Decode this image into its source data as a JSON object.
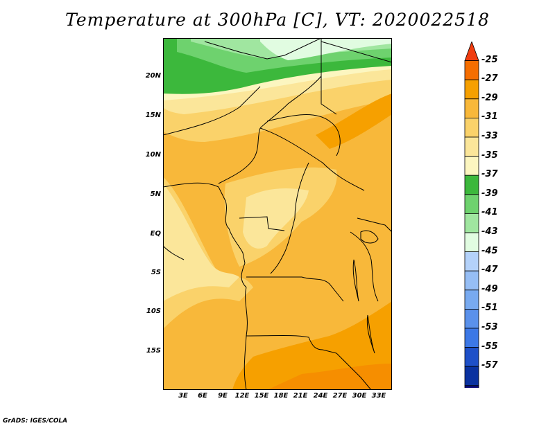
{
  "title": "Temperature at 300hPa [C], VT: 2020022518",
  "lat_labels": [
    "20N",
    "15N",
    "10N",
    "5N",
    "EQ",
    "5S",
    "10S",
    "15S"
  ],
  "lon_labels": [
    "3E",
    "6E",
    "9E",
    "12E",
    "15E",
    "18E",
    "21E",
    "24E",
    "27E",
    "30E",
    "33E"
  ],
  "legend": {
    "levels": [
      "-25",
      "-27",
      "-29",
      "-31",
      "-33",
      "-35",
      "-37",
      "-39",
      "-41",
      "-43",
      "-45",
      "-47",
      "-49",
      "-51",
      "-53",
      "-55",
      "-57"
    ],
    "colors": [
      "#f03c0f",
      "#f56e00",
      "#f6a000",
      "#f8b83a",
      "#fad26a",
      "#fbe69a",
      "#fcf6c0",
      "#3cb83c",
      "#6ed26e",
      "#a0e6a0",
      "#e1fce1",
      "#b4d2fa",
      "#96bef5",
      "#78aaf0",
      "#5a91eb",
      "#3c78e6",
      "#1e50c8",
      "#0a32a0",
      "#0a0a78",
      "#f0f0ff"
    ]
  },
  "credit": "GrADS: IGES/COLA"
}
